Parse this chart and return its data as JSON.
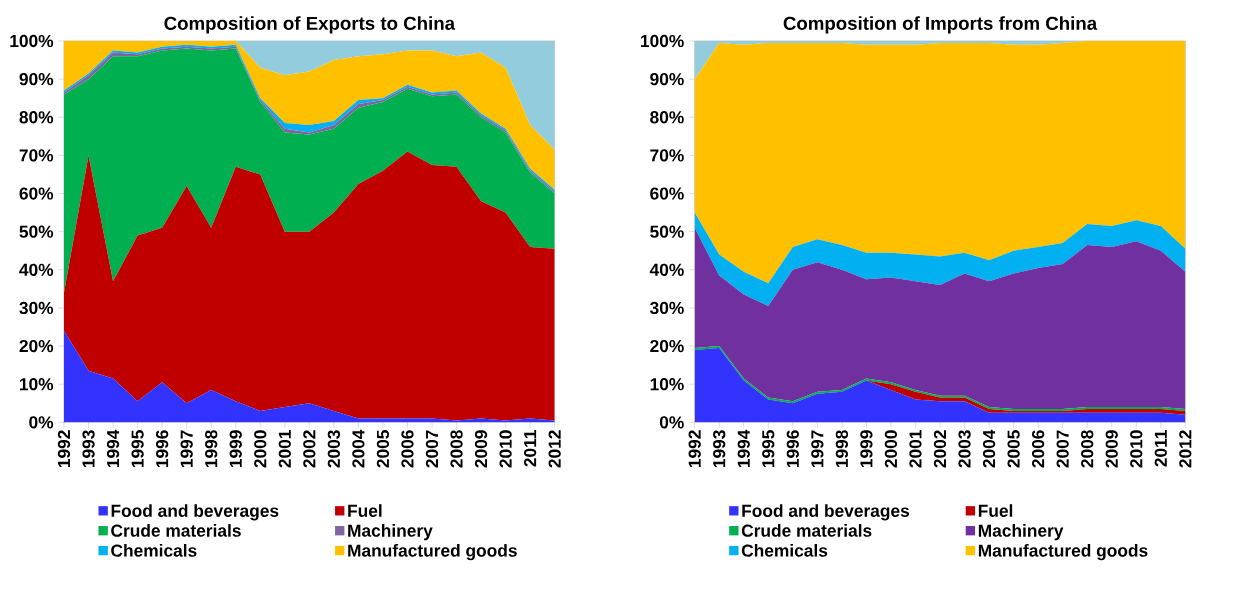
{
  "chart_data": [
    {
      "type": "area",
      "stacked": true,
      "title": "Composition of Exports to China",
      "legend": "bottom",
      "grid": false,
      "categories": [
        "1992",
        "1993",
        "1994",
        "1995",
        "1996",
        "1997",
        "1998",
        "1999",
        "2000",
        "2001",
        "2002",
        "2003",
        "2004",
        "2005",
        "2006",
        "2007",
        "2008",
        "2009",
        "2010",
        "2011",
        "2012"
      ],
      "ylim": [
        0,
        100
      ],
      "yticks": [
        {
          "value": 0,
          "label": "0%"
        },
        {
          "value": 10,
          "label": "10%"
        },
        {
          "value": 20,
          "label": "20%"
        },
        {
          "value": 30,
          "label": "30%"
        },
        {
          "value": 40,
          "label": "40%"
        },
        {
          "value": 50,
          "label": "50%"
        },
        {
          "value": 60,
          "label": "60%"
        },
        {
          "value": 70,
          "label": "70%"
        },
        {
          "value": 80,
          "label": "80%"
        },
        {
          "value": 90,
          "label": "90%"
        },
        {
          "value": 100,
          "label": "100%"
        }
      ],
      "series": [
        {
          "name": "Food and beverages",
          "color": "#3333ff",
          "values": [
            24,
            13.5,
            11.5,
            5.5,
            10.5,
            5,
            8.5,
            5.5,
            3,
            4,
            5,
            3,
            1,
            1,
            1,
            1,
            0.5,
            1,
            0.5,
            1,
            0.5
          ]
        },
        {
          "name": "Fuel",
          "color": "#c00000",
          "values": [
            10,
            56.5,
            25.5,
            43.5,
            40.5,
            57,
            42.5,
            61.5,
            62,
            46,
            45,
            52,
            61.5,
            65,
            70,
            66.5,
            66.5,
            57,
            54.5,
            45,
            45
          ]
        },
        {
          "name": "Crude materials",
          "color": "#00b050",
          "values": [
            52,
            20,
            59,
            47,
            46.5,
            36,
            46.5,
            31,
            19,
            26,
            25.5,
            22,
            20,
            18,
            16.5,
            18,
            19,
            22,
            21,
            19.5,
            14.5
          ]
        },
        {
          "name": "Machinery",
          "color": "#8064a2",
          "values": [
            0.5,
            1,
            1,
            0.5,
            0.5,
            0.5,
            0.5,
            0.5,
            0.5,
            1,
            0.5,
            1,
            1,
            0.5,
            0.5,
            0.5,
            0.5,
            0.5,
            0.5,
            0.5,
            0.5
          ]
        },
        {
          "name": "Chemicals",
          "color": "#00b0f0",
          "values": [
            0.5,
            0.5,
            0.5,
            0.5,
            0.5,
            0.5,
            0.5,
            0.5,
            0.5,
            1.5,
            2,
            1,
            1,
            0.5,
            0.5,
            0.5,
            0.5,
            0.5,
            0.5,
            0.5,
            0.5
          ]
        },
        {
          "name": "Manufactured goods",
          "color": "#ffc000",
          "values": [
            13,
            8.5,
            2.5,
            3,
            1.5,
            1,
            1.5,
            1,
            8,
            12.5,
            14,
            16,
            11.5,
            11.5,
            9,
            11,
            9,
            16,
            16,
            11.5,
            10.5
          ]
        },
        {
          "color": "#93cddd",
          "values": [
            0,
            0,
            0,
            0,
            0,
            0,
            0,
            0,
            7,
            9,
            8,
            5,
            4,
            3.5,
            2.5,
            2.5,
            4,
            3,
            7,
            22,
            28.5
          ]
        }
      ]
    },
    {
      "type": "area",
      "stacked": true,
      "title": "Composition of Imports from China",
      "legend": "bottom",
      "grid": false,
      "categories": [
        "1992",
        "1993",
        "1994",
        "1995",
        "1996",
        "1997",
        "1998",
        "1999",
        "2000",
        "2001",
        "2002",
        "2003",
        "2004",
        "2005",
        "2006",
        "2007",
        "2008",
        "2009",
        "2010",
        "2011",
        "2012"
      ],
      "ylim": [
        0,
        100
      ],
      "yticks": [
        {
          "value": 0,
          "label": "0%"
        },
        {
          "value": 10,
          "label": "10%"
        },
        {
          "value": 20,
          "label": "20%"
        },
        {
          "value": 30,
          "label": "30%"
        },
        {
          "value": 40,
          "label": "40%"
        },
        {
          "value": 50,
          "label": "50%"
        },
        {
          "value": 60,
          "label": "60%"
        },
        {
          "value": 70,
          "label": "70%"
        },
        {
          "value": 80,
          "label": "80%"
        },
        {
          "value": 90,
          "label": "90%"
        },
        {
          "value": 100,
          "label": "100%"
        }
      ],
      "series": [
        {
          "name": "Food and beverages",
          "color": "#3333ff",
          "values": [
            19,
            19.5,
            11,
            6,
            5,
            7.5,
            8,
            11,
            8.5,
            6,
            5.5,
            5.5,
            2.5,
            2.5,
            2.5,
            2.5,
            2.5,
            2.5,
            2.5,
            2.5,
            2
          ]
        },
        {
          "name": "Fuel",
          "color": "#c00000",
          "values": [
            0,
            0,
            0,
            0,
            0,
            0,
            0,
            0,
            1.5,
            2,
            1,
            1,
            1,
            0.5,
            0.5,
            0.5,
            1,
            1,
            1,
            1,
            1
          ]
        },
        {
          "name": "Crude materials",
          "color": "#00b050",
          "values": [
            0.5,
            0.5,
            0.5,
            0.5,
            0.5,
            0.5,
            0.5,
            0.5,
            0.5,
            0.5,
            0.5,
            0.5,
            0.5,
            0.5,
            0.5,
            0.5,
            0.5,
            0.5,
            0.5,
            0.5,
            0.5
          ]
        },
        {
          "name": "Machinery",
          "color": "#7030a0",
          "values": [
            31.5,
            18.5,
            22,
            24,
            34.5,
            34,
            31.5,
            26,
            27.5,
            28.5,
            29,
            32,
            33,
            35.5,
            37,
            38,
            42.5,
            42,
            43.5,
            41,
            36
          ]
        },
        {
          "name": "Chemicals",
          "color": "#00b0f0",
          "values": [
            4,
            5.5,
            6,
            6,
            6,
            6,
            6.5,
            7,
            6.5,
            7,
            7.5,
            5.5,
            5.5,
            6,
            5.5,
            5.5,
            5.5,
            5.5,
            5.5,
            6.5,
            6
          ]
        },
        {
          "name": "Manufactured goods",
          "color": "#ffc000",
          "values": [
            35,
            55.5,
            59.5,
            63,
            53.5,
            51.5,
            53,
            54.5,
            54.5,
            55,
            56,
            55,
            57,
            54,
            53,
            52.5,
            48,
            48.5,
            47,
            48.5,
            54.5
          ]
        },
        {
          "color": "#93cddd",
          "values": [
            10,
            0.5,
            1,
            0.5,
            0.5,
            0.5,
            0.5,
            1,
            1,
            1,
            0.5,
            0.5,
            0.5,
            1,
            1,
            0.5,
            0,
            0,
            0,
            0,
            0
          ]
        }
      ]
    }
  ]
}
